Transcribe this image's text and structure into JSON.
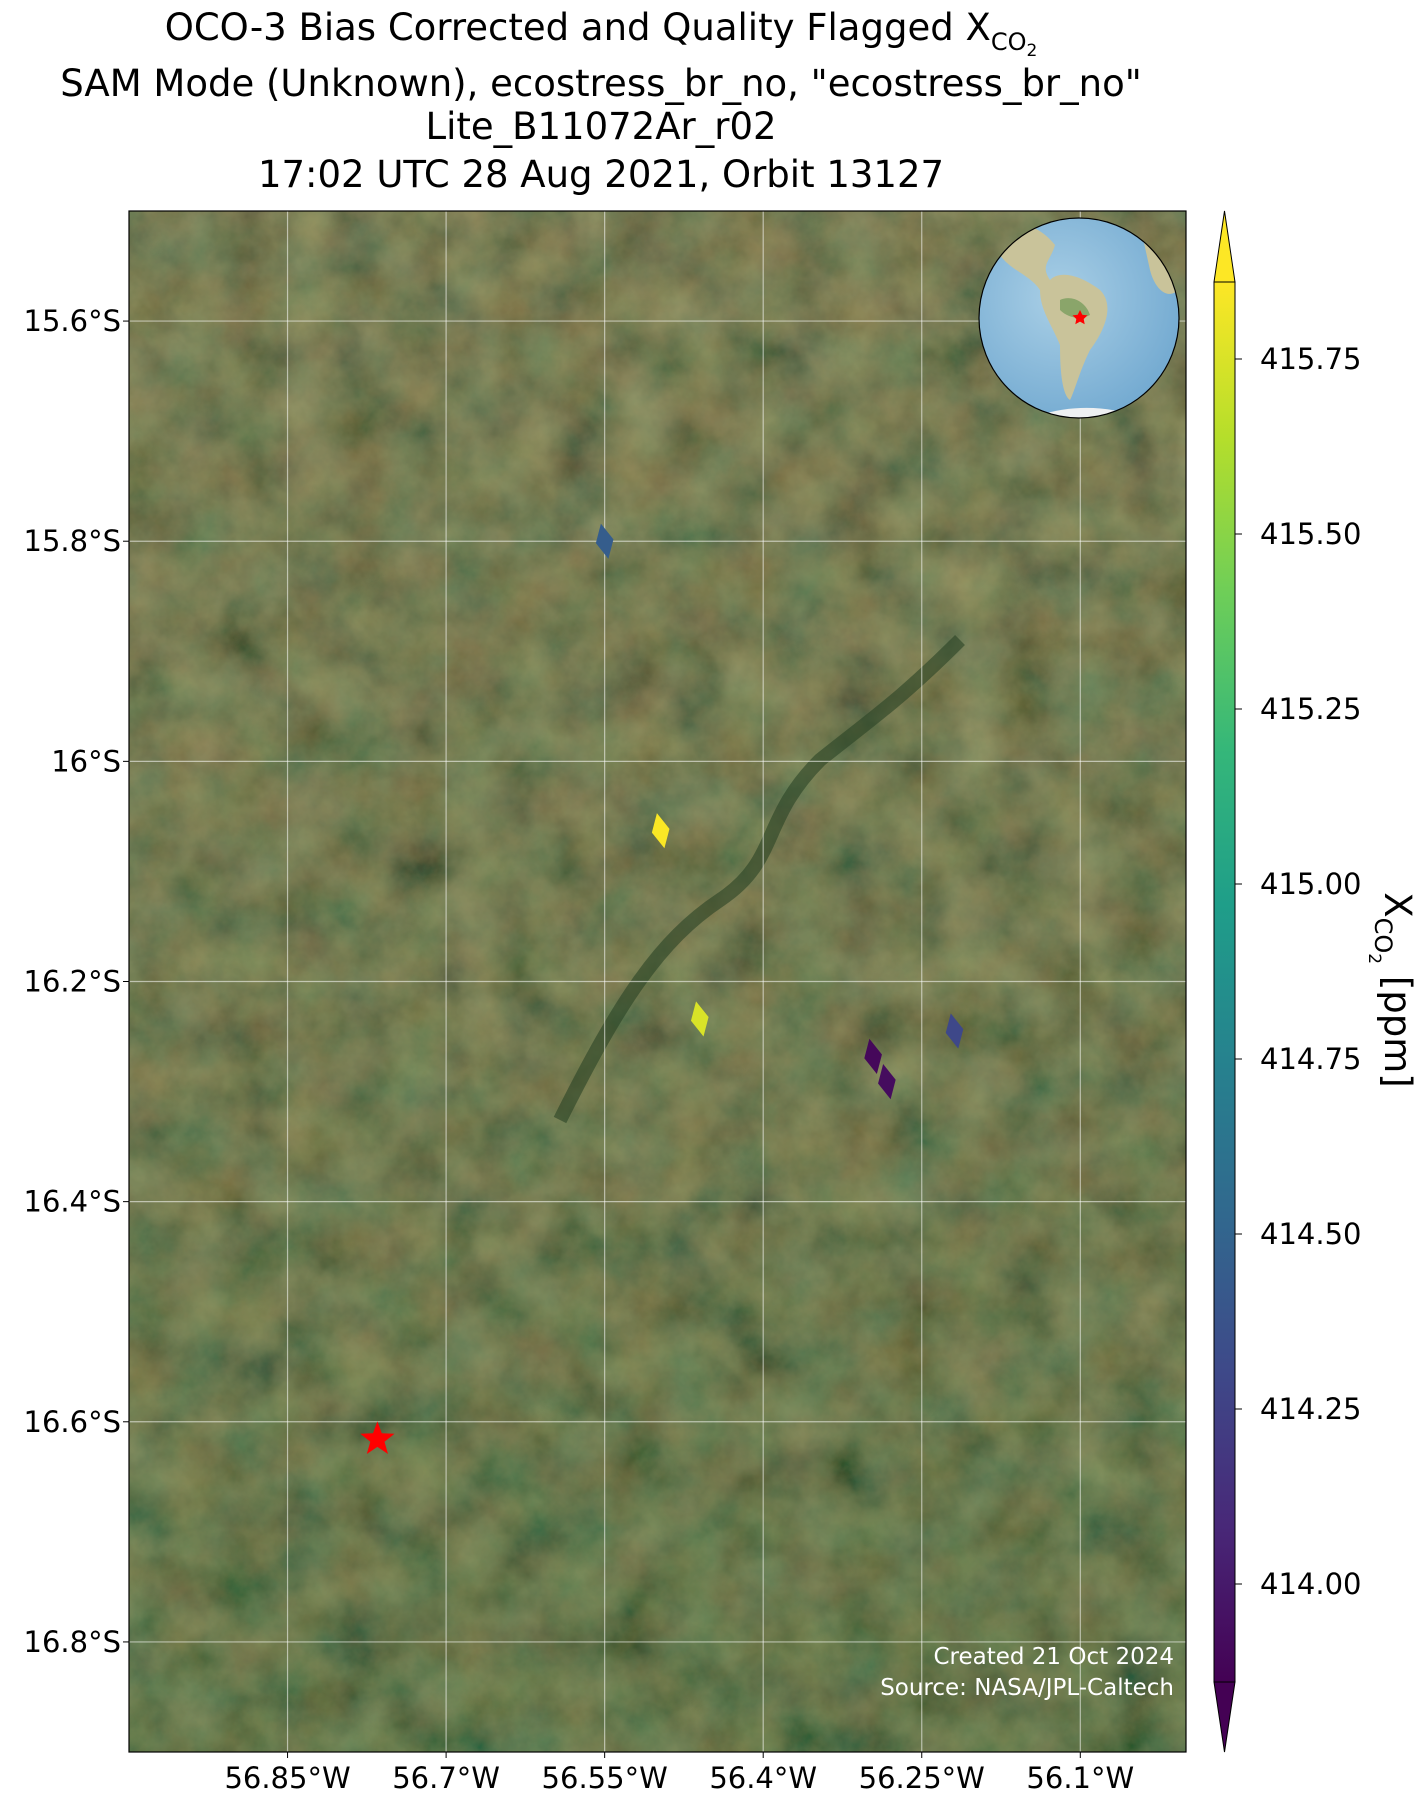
{
  "chart_data": {
    "type": "scatter",
    "title": {
      "base": "OCO-3 Bias Corrected and Quality Flagged X",
      "sub": "CO",
      "subsub": "2"
    },
    "subtitle_lines": [
      "SAM Mode (Unknown), ecostress_br_no, \"ecostress_br_no\"",
      "Lite_B11072Ar_r02",
      "17:02 UTC 28 Aug 2021, Orbit 13127"
    ],
    "x": [
      -56.55,
      -56.497,
      -56.46,
      -56.296,
      -56.283,
      -56.219
    ],
    "y": [
      -15.8,
      -16.063,
      -16.234,
      -16.268,
      -16.291,
      -16.245
    ],
    "values": [
      414.45,
      415.85,
      415.75,
      413.9,
      413.92,
      414.3
    ],
    "site": {
      "x": -56.765,
      "y": -16.616
    },
    "xlim": [
      -57.0,
      -56.0
    ],
    "ylim": [
      -16.9,
      -15.5
    ],
    "xticks": [
      {
        "value": -56.85,
        "label": "56.85°W"
      },
      {
        "value": -56.7,
        "label": "56.7°W"
      },
      {
        "value": -56.55,
        "label": "56.55°W"
      },
      {
        "value": -56.4,
        "label": "56.4°W"
      },
      {
        "value": -56.25,
        "label": "56.25°W"
      },
      {
        "value": -56.1,
        "label": "56.1°W"
      }
    ],
    "yticks": [
      {
        "value": -15.6,
        "label": "15.6°S"
      },
      {
        "value": -15.8,
        "label": "15.8°S"
      },
      {
        "value": -16.0,
        "label": "16°S"
      },
      {
        "value": -16.2,
        "label": "16.2°S"
      },
      {
        "value": -16.4,
        "label": "16.4°S"
      },
      {
        "value": -16.6,
        "label": "16.6°S"
      },
      {
        "value": -16.8,
        "label": "16.8°S"
      }
    ],
    "grid": true,
    "colormap": "viridis",
    "clim": [
      413.86,
      415.86
    ],
    "cticks": [
      {
        "value": 414.0,
        "label": "414.00"
      },
      414.25,
      {
        "value": 414.5,
        "label": "414.50"
      },
      414.75,
      {
        "value": 415.0,
        "label": "415.00"
      },
      415.25,
      {
        "value": 415.5,
        "label": "415.50"
      },
      415.75
    ],
    "colorbar_label": {
      "base": "X",
      "sub": "CO",
      "subsub": "2",
      "unit": " [ppm]"
    },
    "annotations": [
      "Created 21 Oct 2024",
      "Source: NASA/JPL-Caltech"
    ]
  }
}
